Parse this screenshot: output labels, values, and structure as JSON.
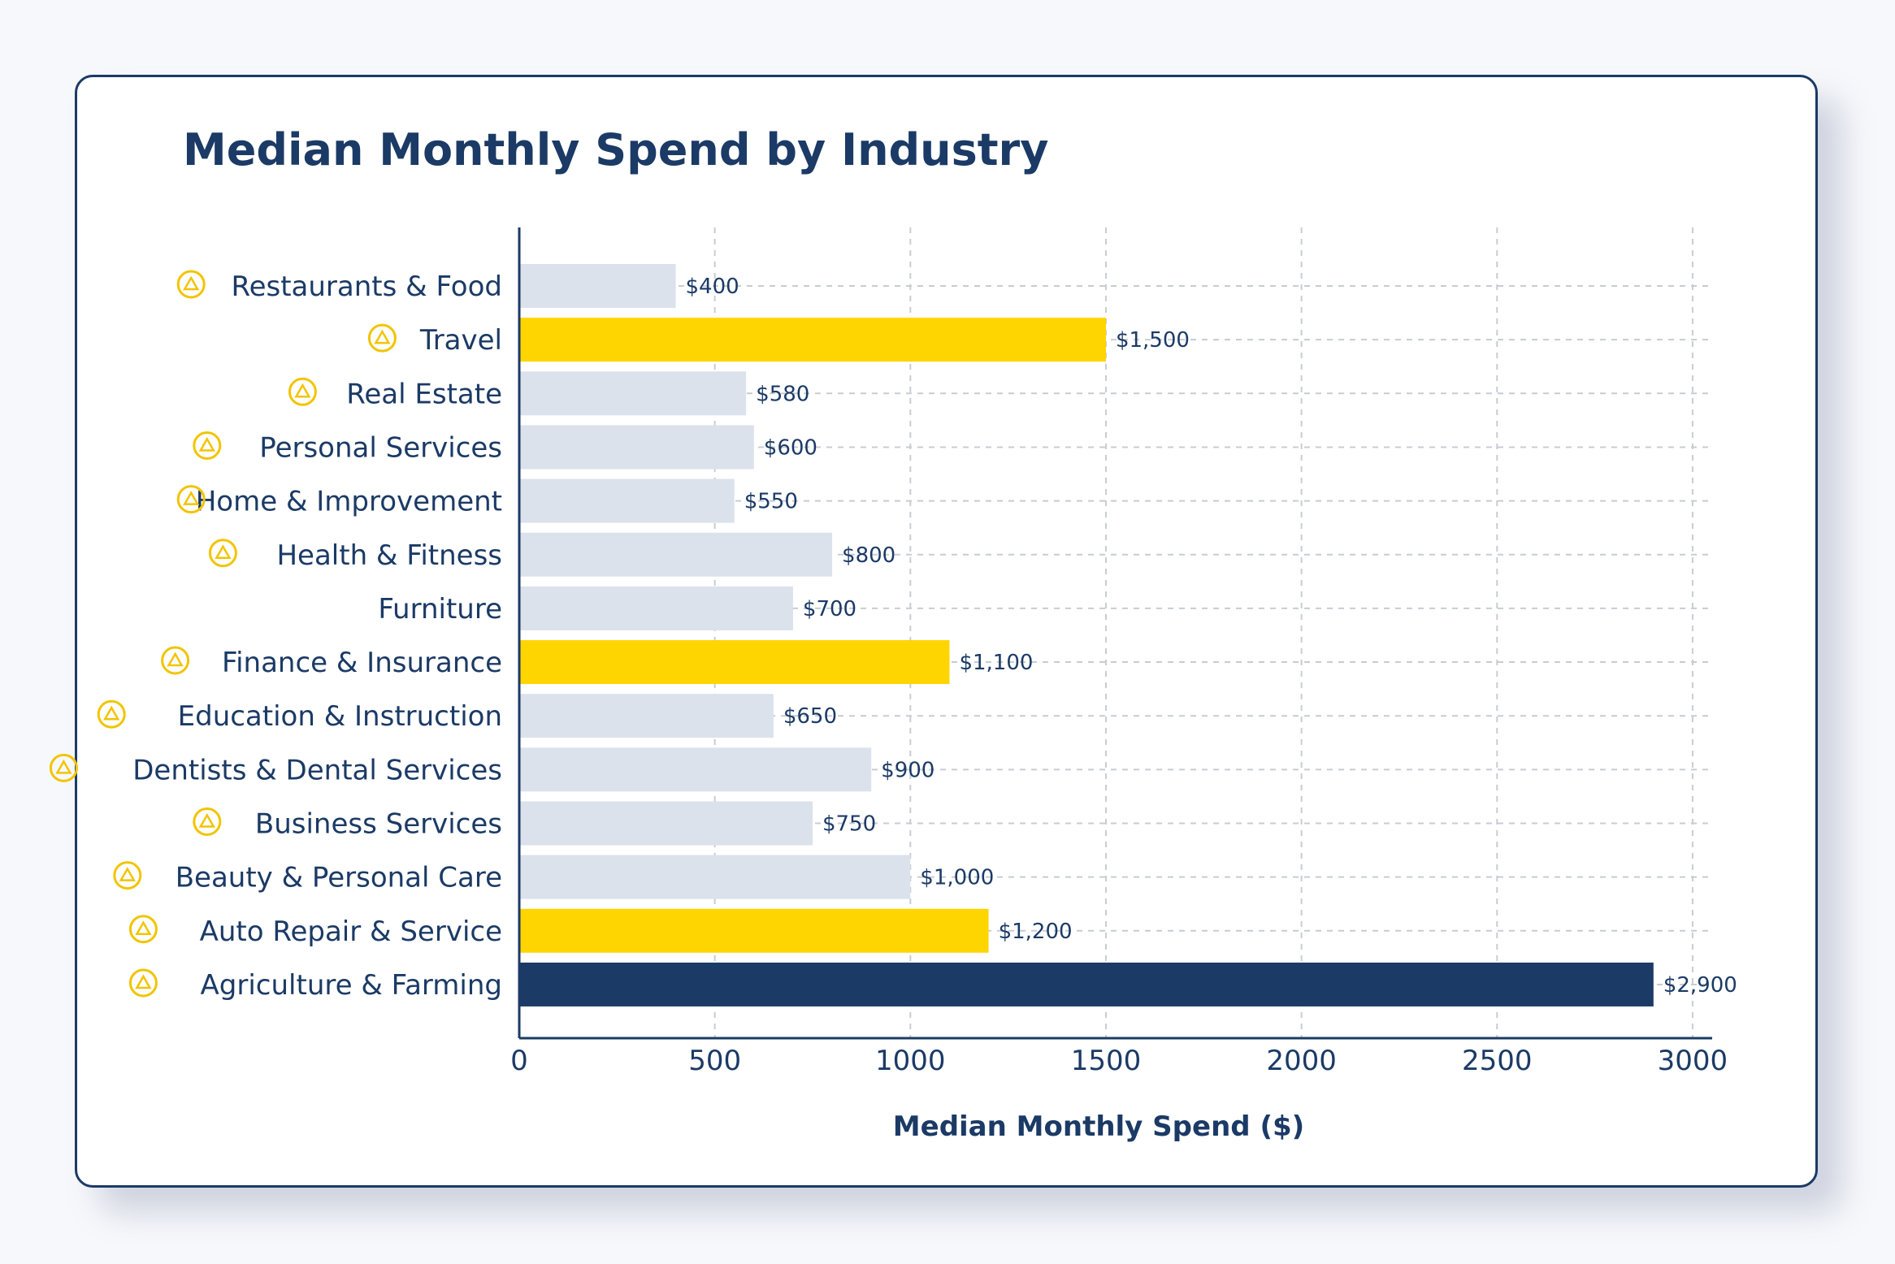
{
  "chart_data": {
    "type": "bar",
    "orientation": "horizontal",
    "title": "Median Monthly Spend by Industry",
    "xlabel": "Median Monthly Spend ($)",
    "ylabel": "",
    "xlim": [
      0,
      3050
    ],
    "x_ticks": [
      0,
      500,
      1000,
      1500,
      2000,
      2500,
      3000
    ],
    "x_tick_labels": [
      "0",
      "500",
      "1000",
      "1500",
      "2000",
      "2500",
      "3000"
    ],
    "grid": "dashed",
    "categories": [
      "Restaurants & Food",
      "Travel",
      "Real Estate",
      "Personal Services",
      "Home & Improvement",
      "Health & Fitness",
      "Furniture",
      "Finance & Insurance",
      "Education & Instruction",
      "Dentists & Dental Services",
      "Business Services",
      "Beauty & Personal Care",
      "Auto Repair & Service",
      "Agriculture & Farming"
    ],
    "values": [
      400,
      1500,
      580,
      600,
      550,
      800,
      700,
      1100,
      650,
      900,
      750,
      1000,
      1200,
      2900
    ],
    "value_labels": [
      "$400",
      "$1,500",
      "$580",
      "$600",
      "$550",
      "$800",
      "$700",
      "$1,100",
      "$650",
      "$900",
      "$750",
      "$1,000",
      "$1,200",
      "$2,900"
    ],
    "bar_highlight": [
      "default",
      "highlight",
      "default",
      "default",
      "default",
      "default",
      "default",
      "highlight",
      "default",
      "default",
      "default",
      "default",
      "highlight",
      "max"
    ],
    "icons": [
      "restaurant-icon",
      "travel-icon",
      "real-estate-icon",
      "personal-services-icon",
      "home-icon",
      "fitness-icon",
      "",
      "finance-icon",
      "education-icon",
      "dentist-icon",
      "business-icon",
      "beauty-icon",
      "auto-icon",
      "agriculture-icon"
    ]
  },
  "colors": {
    "default_bar": "#dbe2ec",
    "highlight_bar": "#ffd500",
    "max_bar": "#1b3a66",
    "text": "#1b3a66",
    "grid": "#c8ccd3",
    "icon": "#f2c400"
  }
}
